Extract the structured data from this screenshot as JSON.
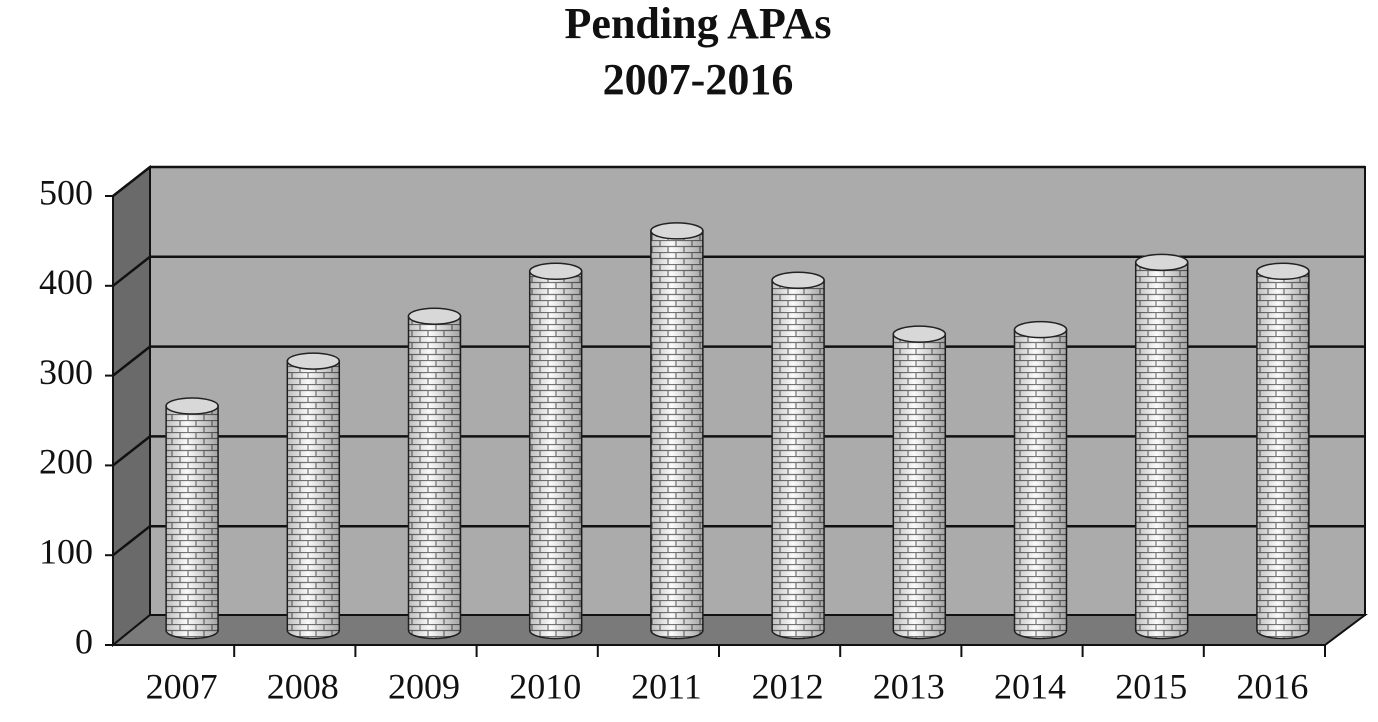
{
  "chart_data": {
    "type": "bar",
    "title": "Pending APAs",
    "subtitle": "2007-2016",
    "categories": [
      "2007",
      "2008",
      "2009",
      "2010",
      "2011",
      "2012",
      "2013",
      "2014",
      "2015",
      "2016"
    ],
    "values": [
      250,
      300,
      350,
      400,
      445,
      390,
      330,
      335,
      410,
      400
    ],
    "color": "#ffffff",
    "ylim": [
      0,
      500
    ],
    "yticks": [
      0,
      100,
      200,
      300,
      400,
      500
    ],
    "grid": true
  }
}
